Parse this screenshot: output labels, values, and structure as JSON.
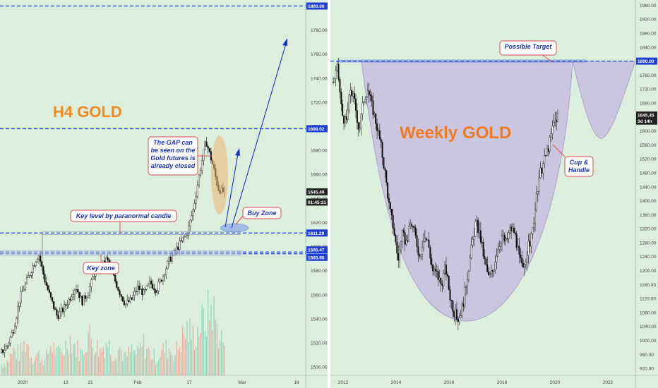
{
  "chart_data": [
    {
      "type": "candlestick",
      "title": "H4 GOLD",
      "instrument": "Gold",
      "timeframe": "H4",
      "x_tick_labels": [
        "2020",
        "13",
        "21",
        "Feb",
        "17",
        "Mar",
        "16"
      ],
      "y_tick_labels": [
        "1500.00",
        "1520.00",
        "1540.00",
        "1560.00",
        "1580.00",
        "1600.00",
        "1620.00",
        "1640.00",
        "1660.00",
        "1680.00",
        "1700.00",
        "1720.00",
        "1740.00",
        "1760.00",
        "1780.00"
      ],
      "ylim": [
        1493,
        1805
      ],
      "price_path": [
        1512,
        1518,
        1532,
        1558,
        1570,
        1583,
        1594,
        1572,
        1556,
        1542,
        1548,
        1557,
        1567,
        1554,
        1562,
        1578,
        1582,
        1590,
        1576,
        1563,
        1552,
        1556,
        1566,
        1561,
        1570,
        1564,
        1575,
        1588,
        1596,
        1604,
        1612,
        1632,
        1662,
        1688,
        1670,
        1648,
        1645
      ],
      "volume_relative": [
        0.15,
        0.2,
        0.35,
        0.3,
        0.5,
        0.25,
        0.3,
        0.2,
        0.45,
        0.3,
        0.35,
        0.55,
        0.4,
        0.3,
        0.6,
        0.45,
        0.35,
        0.5,
        0.3,
        0.4,
        0.25,
        0.35,
        0.3,
        0.45,
        0.3,
        0.25,
        0.35,
        0.4,
        0.3,
        0.5,
        0.65,
        0.55,
        0.7,
        0.8,
        1.0,
        0.6,
        0.45
      ],
      "levels": [
        {
          "label": "1800.00",
          "value": 1800,
          "color": "#1f3fd6",
          "style": "dashed"
        },
        {
          "label": "1698.02",
          "value": 1698,
          "color": "#1f3fd6",
          "style": "dashed"
        },
        {
          "label": "1611.29",
          "value": 1611.3,
          "color": "#1f3fd6",
          "style": "dashed"
        },
        {
          "label": "1595.47",
          "value": 1595.5,
          "color": "#1f3fd6",
          "style": "dashed"
        },
        {
          "label": "1593.95",
          "value": 1594,
          "color": "#1f3fd6",
          "style": "dashed"
        }
      ],
      "price_tags": [
        {
          "label": "1645.49",
          "value": 1645.5,
          "color": "#222222"
        },
        {
          "label": "01:45:31",
          "value": 1637,
          "color": "#222222"
        }
      ],
      "annotations": [
        {
          "text": [
            "The GAP can",
            "be seen on the",
            "Gold futures is",
            "already closed"
          ]
        },
        {
          "text": [
            "Key level by paranormal candle"
          ]
        },
        {
          "text": [
            "Key zone"
          ]
        },
        {
          "text": [
            "Buy Zone"
          ]
        }
      ]
    },
    {
      "type": "candlestick",
      "title": "Weekly GOLD",
      "instrument": "Gold",
      "timeframe": "Weekly",
      "x_tick_labels": [
        "2012",
        "2014",
        "2016",
        "2018",
        "2020",
        "2022"
      ],
      "y_tick_labels": [
        "920.00",
        "960.00",
        "1000.00",
        "1040.00",
        "1080.00",
        "1120.00",
        "1160.00",
        "1200.00",
        "1240.00",
        "1280.00",
        "1320.00",
        "1360.00",
        "1400.00",
        "1440.00",
        "1480.00",
        "1520.00",
        "1560.00",
        "1600.00",
        "1640.00",
        "1680.00",
        "1720.00",
        "1760.00",
        "1800.00",
        "1840.00",
        "1880.00",
        "1920.00",
        "1960.00"
      ],
      "ylim": [
        900,
        1975
      ],
      "price_path": [
        1740,
        1780,
        1650,
        1620,
        1720,
        1680,
        1600,
        1690,
        1720,
        1670,
        1620,
        1560,
        1480,
        1380,
        1320,
        1230,
        1300,
        1280,
        1340,
        1300,
        1240,
        1300,
        1280,
        1200,
        1190,
        1160,
        1210,
        1130,
        1080,
        1060,
        1100,
        1180,
        1260,
        1340,
        1300,
        1230,
        1180,
        1200,
        1260,
        1300,
        1280,
        1320,
        1310,
        1240,
        1200,
        1260,
        1300,
        1400,
        1480,
        1520,
        1560,
        1620,
        1645
      ],
      "levels": [
        {
          "label": "1800.00",
          "value": 1800,
          "color": "#1f3fd6",
          "style": "dashed"
        }
      ],
      "price_tags": [
        {
          "label": "1645.45",
          "value": 1645.5,
          "color": "#222222"
        },
        {
          "label": "3d 14h",
          "value": 1628,
          "color": "#222222"
        }
      ],
      "annotations": [
        {
          "text": [
            "Possible Target"
          ]
        },
        {
          "text": [
            "Cup &",
            "Handle"
          ]
        }
      ]
    }
  ]
}
